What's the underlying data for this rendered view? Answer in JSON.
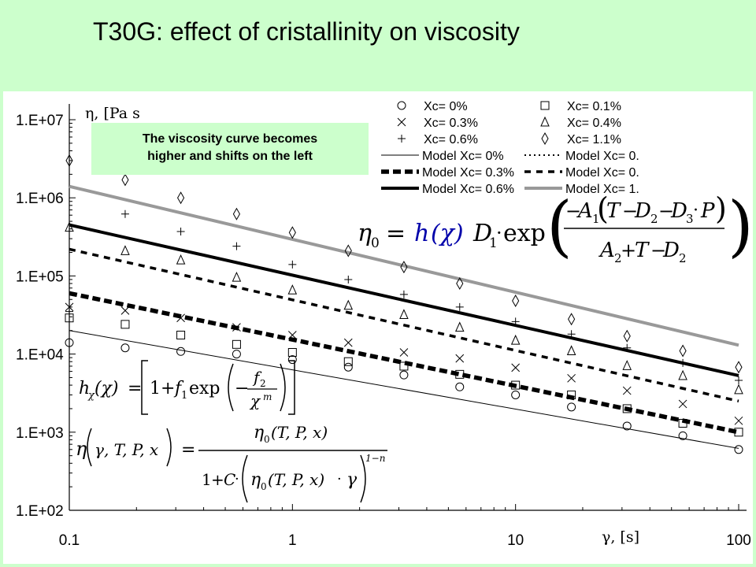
{
  "slide": {
    "title": "T30G:  effect of cristallinity on viscosity",
    "annotation_line1": "The viscosity curve becomes",
    "annotation_line2": "higher and shifts on the left"
  },
  "chart_data": {
    "type": "scatter",
    "title": "",
    "xlabel": "γ, [s]",
    "ylabel": "η, [Pa s",
    "x_scale": "log",
    "y_scale": "log",
    "xlim": [
      0.1,
      100
    ],
    "ylim": [
      100,
      10000000
    ],
    "x_ticks": [
      "0.1",
      "1",
      "10",
      "100"
    ],
    "y_ticks": [
      "1.E+02",
      "1.E+03",
      "1.E+04",
      "1.E+05",
      "1.E+06",
      "1.E+07"
    ],
    "grid": false,
    "legend_position": "top-right",
    "legend": {
      "markers": [
        {
          "label": "Xc= 0%",
          "marker": "circle"
        },
        {
          "label": "Xc= 0.1%",
          "marker": "square"
        },
        {
          "label": "Xc= 0.3%",
          "marker": "x"
        },
        {
          "label": "Xc= 0.4%",
          "marker": "triangle"
        },
        {
          "label": "Xc= 0.6%",
          "marker": "plus"
        },
        {
          "label": "Xc= 1.1%",
          "marker": "diamond"
        }
      ],
      "lines": [
        {
          "label": "Model Xc= 0%",
          "style": "thin-solid",
          "color": "#000000"
        },
        {
          "label": "Model Xc= 0.",
          "style": "dotted",
          "color": "#000000"
        },
        {
          "label": "Model Xc= 0.3%",
          "style": "heavy-dash",
          "color": "#000000"
        },
        {
          "label": "Model Xc= 0.",
          "style": "dash",
          "color": "#000000"
        },
        {
          "label": "Model Xc= 0.6%",
          "style": "thick-solid",
          "color": "#000000"
        },
        {
          "label": "Model Xc= 1.",
          "style": "thick-solid",
          "color": "#999999"
        }
      ]
    },
    "series": [
      {
        "name": "Xc= 0%",
        "marker": "circle",
        "x": [
          0.1,
          0.178,
          0.316,
          0.562,
          1,
          1.78,
          3.16,
          5.62,
          10,
          17.8,
          31.6,
          56.2,
          100
        ],
        "y": [
          14000,
          12000,
          10800,
          10000,
          8500,
          6800,
          5400,
          3800,
          3000,
          2100,
          1200,
          900,
          600
        ]
      },
      {
        "name": "Xc= 0.1%",
        "marker": "square",
        "x": [
          0.1,
          0.178,
          0.316,
          0.562,
          1,
          1.78,
          3.16,
          5.62,
          10,
          17.8,
          31.6,
          56.2,
          100
        ],
        "y": [
          29000,
          24000,
          17500,
          13300,
          10500,
          8000,
          7000,
          5500,
          4000,
          3000,
          2000,
          1300,
          1000
        ]
      },
      {
        "name": "Xc= 0.3%",
        "marker": "x",
        "x": [
          0.1,
          0.178,
          0.316,
          0.562,
          1,
          1.78,
          3.16,
          5.62,
          10,
          17.8,
          31.6,
          56.2,
          100
        ],
        "y": [
          40000,
          36000,
          29000,
          22000,
          17500,
          14000,
          10500,
          8800,
          6700,
          4900,
          3400,
          2300,
          1400
        ]
      },
      {
        "name": "Xc= 0.4%",
        "marker": "triangle",
        "x": [
          0.1,
          0.178,
          0.316,
          0.562,
          1,
          1.78,
          3.16,
          5.62,
          10,
          17.8,
          31.6,
          56.2,
          100
        ],
        "y": [
          420000,
          210000,
          160000,
          96000,
          66000,
          42000,
          32000,
          22000,
          15000,
          11000,
          7100,
          5300,
          3500
        ]
      },
      {
        "name": "Xc= 0.6%",
        "marker": "plus",
        "x": [
          0.1,
          0.178,
          0.316,
          0.562,
          1,
          1.78,
          3.16,
          5.62,
          10,
          17.8,
          31.6,
          56.2,
          100
        ],
        "y": [
          35000,
          620000,
          370000,
          240000,
          140000,
          90000,
          58000,
          40000,
          26000,
          18000,
          12000,
          7700,
          4600
        ]
      },
      {
        "name": "Xc= 1.1%",
        "marker": "diamond",
        "x": [
          0.1,
          0.178,
          0.316,
          0.562,
          1,
          1.78,
          3.16,
          5.62,
          10,
          17.8,
          31.6,
          56.2,
          100
        ],
        "y": [
          3000000,
          1700000,
          1000000,
          620000,
          360000,
          210000,
          130000,
          80000,
          48000,
          28000,
          17000,
          11000,
          6800
        ]
      }
    ],
    "model_lines": [
      {
        "name": "Model Xc= 0%",
        "style": "thin-solid",
        "color": "#000000",
        "x": [
          0.1,
          100
        ],
        "y": [
          20000,
          620
        ]
      },
      {
        "name": "Model Xc= 0.3%",
        "style": "heavy-dash",
        "color": "#000000",
        "x": [
          0.1,
          100
        ],
        "y": [
          60000,
          1000
        ]
      },
      {
        "name": "Model Xc= 0.",
        "style": "dash",
        "color": "#000000",
        "x": [
          0.1,
          100
        ],
        "y": [
          220000,
          2500
        ]
      },
      {
        "name": "Model Xc= 0.6%",
        "style": "thick-solid",
        "color": "#000000",
        "x": [
          0.1,
          100
        ],
        "y": [
          450000,
          5300
        ]
      },
      {
        "name": "Model Xc= 1.",
        "style": "thick-solid",
        "color": "#999999",
        "x": [
          0.1,
          100
        ],
        "y": [
          1400000,
          13000
        ]
      }
    ]
  },
  "equations": {
    "eta0": {
      "lhs": "η",
      "sub": "0",
      "eq": "=",
      "h": "h",
      "chi": "(χ)",
      "D1": "D",
      "sub1": "1",
      "dot": "·",
      "exp": "exp",
      "num_minus": "−",
      "A": "A",
      "T": "T",
      "D": "D",
      "minus": "−",
      "sub2": "2",
      "sub3": "3",
      "P": "P",
      "plus": "+",
      "paren_l": "(",
      "paren_r": ")"
    },
    "hchi": {
      "h": "h",
      "sub": "χ",
      "arg": "(χ)",
      "eq": "=",
      "one": "1",
      "plus": "+",
      "f": "f",
      "sub1": "1",
      "exp": "exp",
      "minus": "−",
      "sub2": "2",
      "m": "m"
    },
    "visc": {
      "eta": "η",
      "args": "γ, T, P, x",
      "eq": "=",
      "eta0": "η",
      "sub0": "0",
      "args0": "(T, P, x)",
      "one": "1",
      "plus": "+",
      "C": "C",
      "dot": "·",
      "gamma": "γ",
      "pow": "1−n"
    }
  }
}
